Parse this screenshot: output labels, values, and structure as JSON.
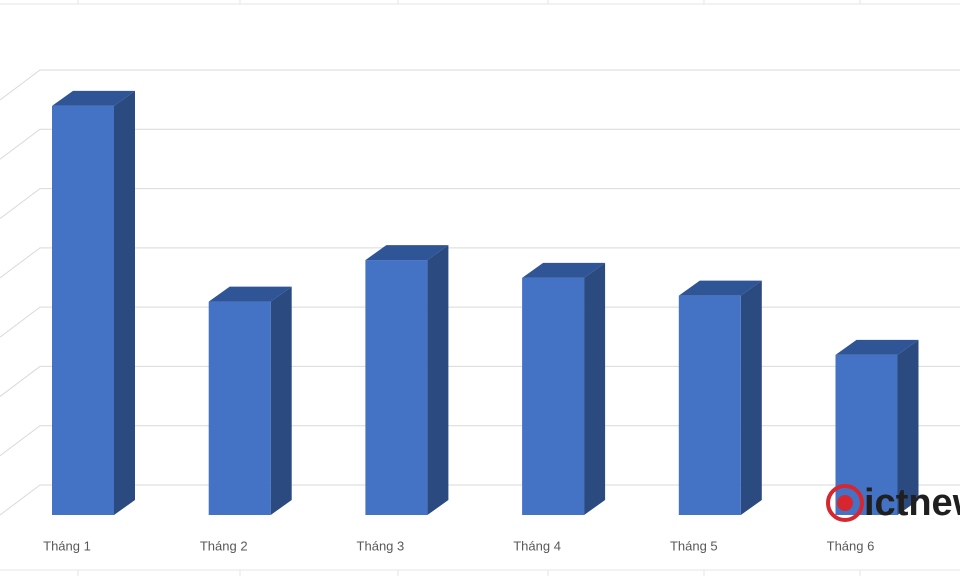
{
  "chart_data": {
    "type": "bar3d",
    "categories": [
      "Tháng 1",
      "Tháng 2",
      "Tháng 3",
      "Tháng 4",
      "Tháng 5",
      "Tháng 6"
    ],
    "values": [
      6.9,
      3.6,
      4.3,
      4.0,
      3.7,
      2.7
    ],
    "color": "#4472c4",
    "ylim": [
      0,
      7
    ],
    "yticks": [
      0,
      1,
      2,
      3,
      4,
      5,
      6,
      7
    ],
    "grid": true,
    "watermark": "ictnew"
  }
}
